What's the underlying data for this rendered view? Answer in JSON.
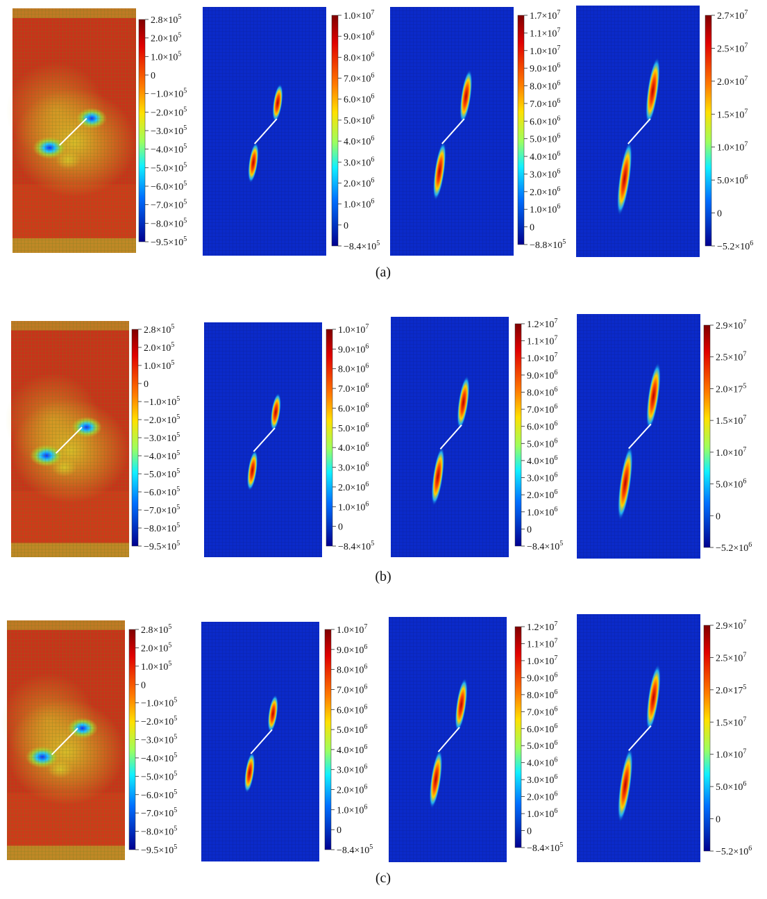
{
  "figure": {
    "rows": [
      {
        "caption": "(a)",
        "panels": [
          {
            "colorbar_ticks": [
              "2.8×10^5",
              "2.0×10^5",
              "1.0×10^5",
              "0",
              "−1.0×10^5",
              "−2.0×10^5",
              "−3.0×10^5",
              "−4.0×10^5",
              "−5.0×10^5",
              "−6.0×10^5",
              "−7.0×10^5",
              "−8.0×10^5",
              "−9.5×10^5"
            ]
          },
          {
            "colorbar_ticks": [
              "1.0×10^7",
              "9.0×10^6",
              "8.0×10^6",
              "7.0×10^6",
              "6.0×10^6",
              "5.0×10^6",
              "4.0×10^6",
              "3.0×10^6",
              "2.0×10^6",
              "1.0×10^6",
              "0",
              "−8.4×10^5"
            ]
          },
          {
            "colorbar_ticks": [
              "1.7×10^7",
              "1.1×10^7",
              "1.0×10^7",
              "9.0×10^6",
              "8.0×10^6",
              "7.0×10^6",
              "6.0×10^6",
              "5.0×10^6",
              "4.0×10^6",
              "3.0×10^6",
              "2.0×10^6",
              "1.0×10^6",
              "0",
              "−8.8×10^5"
            ]
          },
          {
            "colorbar_ticks": [
              "2.7×10^7",
              "2.5×10^7",
              "2.0×10^7",
              "1.5×10^7",
              "1.0×10^7",
              "5.0×10^6",
              "0",
              "−5.2×10^6"
            ]
          }
        ]
      },
      {
        "caption": "(b)",
        "panels": [
          {
            "colorbar_ticks": [
              "2.8×10^5",
              "2.0×10^5",
              "1.0×10^5",
              "0",
              "−1.0×10^5",
              "−2.0×10^5",
              "−3.0×10^5",
              "−4.0×10^5",
              "−5.0×10^5",
              "−6.0×10^5",
              "−7.0×10^5",
              "−8.0×10^5",
              "−9.5×10^5"
            ]
          },
          {
            "colorbar_ticks": [
              "1.0×10^7",
              "9.0×10^6",
              "8.0×10^6",
              "7.0×10^6",
              "6.0×10^6",
              "5.0×10^6",
              "4.0×10^6",
              "3.0×10^6",
              "2.0×10^6",
              "1.0×10^6",
              "0",
              "−8.4×10^5"
            ]
          },
          {
            "colorbar_ticks": [
              "1.2×10^7",
              "1.1×10^7",
              "1.0×10^7",
              "9.0×10^6",
              "8.0×10^6",
              "7.0×10^6",
              "6.0×10^6",
              "5.0×10^6",
              "4.0×10^6",
              "3.0×10^6",
              "2.0×10^6",
              "1.0×10^6",
              "0",
              "−8.4×10^5"
            ]
          },
          {
            "colorbar_ticks": [
              "2.9×10^7",
              "2.5×10^7",
              "2.0×17^5",
              "1.5×10^7",
              "1.0×10^7",
              "5.0×10^6",
              "0",
              "−5.2×10^6"
            ]
          }
        ]
      },
      {
        "caption": "(c)",
        "panels": [
          {
            "colorbar_ticks": [
              "2.8×10^5",
              "2.0×10^5",
              "1.0×10^5",
              "0",
              "−1.0×10^5",
              "−2.0×10^5",
              "−3.0×10^5",
              "−4.0×10^5",
              "−5.0×10^5",
              "−6.0×10^5",
              "−7.0×10^5",
              "−8.0×10^5",
              "−9.5×10^5"
            ]
          },
          {
            "colorbar_ticks": [
              "1.0×10^7",
              "9.0×10^6",
              "8.0×10^6",
              "7.0×10^6",
              "6.0×10^6",
              "5.0×10^6",
              "4.0×10^6",
              "3.0×10^6",
              "2.0×10^6",
              "1.0×10^6",
              "0",
              "−8.4×10^5"
            ]
          },
          {
            "colorbar_ticks": [
              "1.2×10^7",
              "1.1×10^7",
              "1.0×10^7",
              "9.0×10^6",
              "8.0×10^6",
              "7.0×10^6",
              "6.0×10^6",
              "5.0×10^6",
              "4.0×10^6",
              "3.0×10^6",
              "2.0×10^6",
              "1.0×10^6",
              "0",
              "−8.4×10^5"
            ]
          },
          {
            "colorbar_ticks": [
              "2.9×10^7",
              "2.5×10^7",
              "2.0×17^5",
              "1.5×10^7",
              "1.0×10^7",
              "5.0×10^6",
              "0",
              "−5.2×10^6"
            ]
          }
        ]
      }
    ]
  }
}
